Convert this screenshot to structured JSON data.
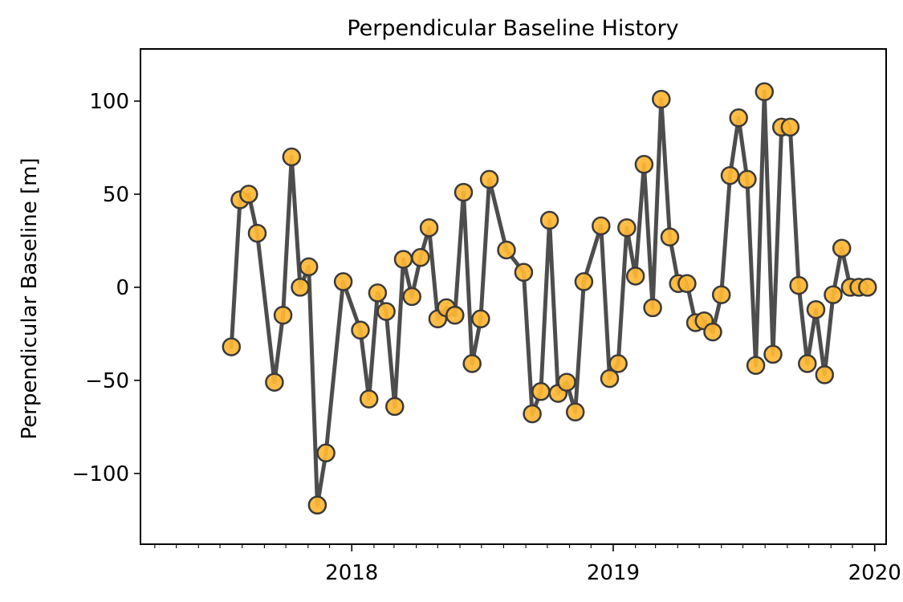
{
  "chart_data": {
    "type": "line",
    "title": "Perpendicular Baseline History",
    "xlabel": "",
    "ylabel": "Perpendicular Baseline [m]",
    "xlim": [
      "2017-03-12",
      "2020-01-17"
    ],
    "ylim": [
      -138,
      128
    ],
    "x_ticks": [
      {
        "date": "2018-01-01",
        "label": "2018"
      },
      {
        "date": "2019-01-01",
        "label": "2019"
      },
      {
        "date": "2020-01-01",
        "label": "2020"
      }
    ],
    "y_ticks": [
      {
        "value": 100,
        "label": "100"
      },
      {
        "value": 50,
        "label": "50"
      },
      {
        "value": 0,
        "label": "0"
      },
      {
        "value": -50,
        "label": "−50"
      },
      {
        "value": -100,
        "label": "−100"
      }
    ],
    "minor_x_ticks_monthly": true,
    "grid": false,
    "legend": "none",
    "colors": {
      "line": "#4d4d4d",
      "marker_fill": "#ffb733",
      "marker_edge": "#3a3a3a"
    },
    "series": [
      {
        "x": [
          "2017-07-17",
          "2017-07-29",
          "2017-08-10",
          "2017-08-22",
          "2017-09-15",
          "2017-09-27",
          "2017-10-09",
          "2017-10-21",
          "2017-11-02",
          "2017-11-14",
          "2017-11-26",
          "2017-12-20",
          "2018-01-13",
          "2018-01-25",
          "2018-02-06",
          "2018-02-18",
          "2018-03-02",
          "2018-03-14",
          "2018-03-26",
          "2018-04-07",
          "2018-04-19",
          "2018-05-01",
          "2018-05-13",
          "2018-05-25",
          "2018-06-06",
          "2018-06-18",
          "2018-06-30",
          "2018-07-12",
          "2018-08-05",
          "2018-08-29",
          "2018-09-10",
          "2018-09-22",
          "2018-10-04",
          "2018-10-16",
          "2018-10-28",
          "2018-11-09",
          "2018-11-21",
          "2018-12-15",
          "2018-12-27",
          "2019-01-08",
          "2019-01-20",
          "2019-02-01",
          "2019-02-13",
          "2019-02-25",
          "2019-03-09",
          "2019-03-21",
          "2019-04-02",
          "2019-04-14",
          "2019-04-26",
          "2019-05-08",
          "2019-05-20",
          "2019-06-01",
          "2019-06-13",
          "2019-06-25",
          "2019-07-07",
          "2019-07-19",
          "2019-07-31",
          "2019-08-12",
          "2019-08-24",
          "2019-09-05",
          "2019-09-17",
          "2019-09-29",
          "2019-10-11",
          "2019-10-23",
          "2019-11-04",
          "2019-11-16",
          "2019-11-28",
          "2019-12-10",
          "2019-12-22"
        ],
        "y": [
          -32,
          47,
          50,
          29,
          -51,
          -15,
          70,
          0,
          11,
          -117,
          -89,
          3,
          -23,
          -60,
          -3,
          -13,
          -64,
          15,
          -5,
          16,
          32,
          -17,
          -11,
          -15,
          51,
          -41,
          -17,
          58,
          20,
          8,
          -68,
          -56,
          36,
          -57,
          -51,
          -67,
          3,
          33,
          -49,
          -41,
          32,
          6,
          66,
          -11,
          101,
          27,
          2,
          2,
          -19,
          -18,
          -24,
          -4,
          60,
          91,
          58,
          -42,
          105,
          -36,
          86,
          86,
          1,
          -41,
          -12,
          -47,
          -4,
          21,
          0,
          0,
          0
        ]
      }
    ]
  }
}
